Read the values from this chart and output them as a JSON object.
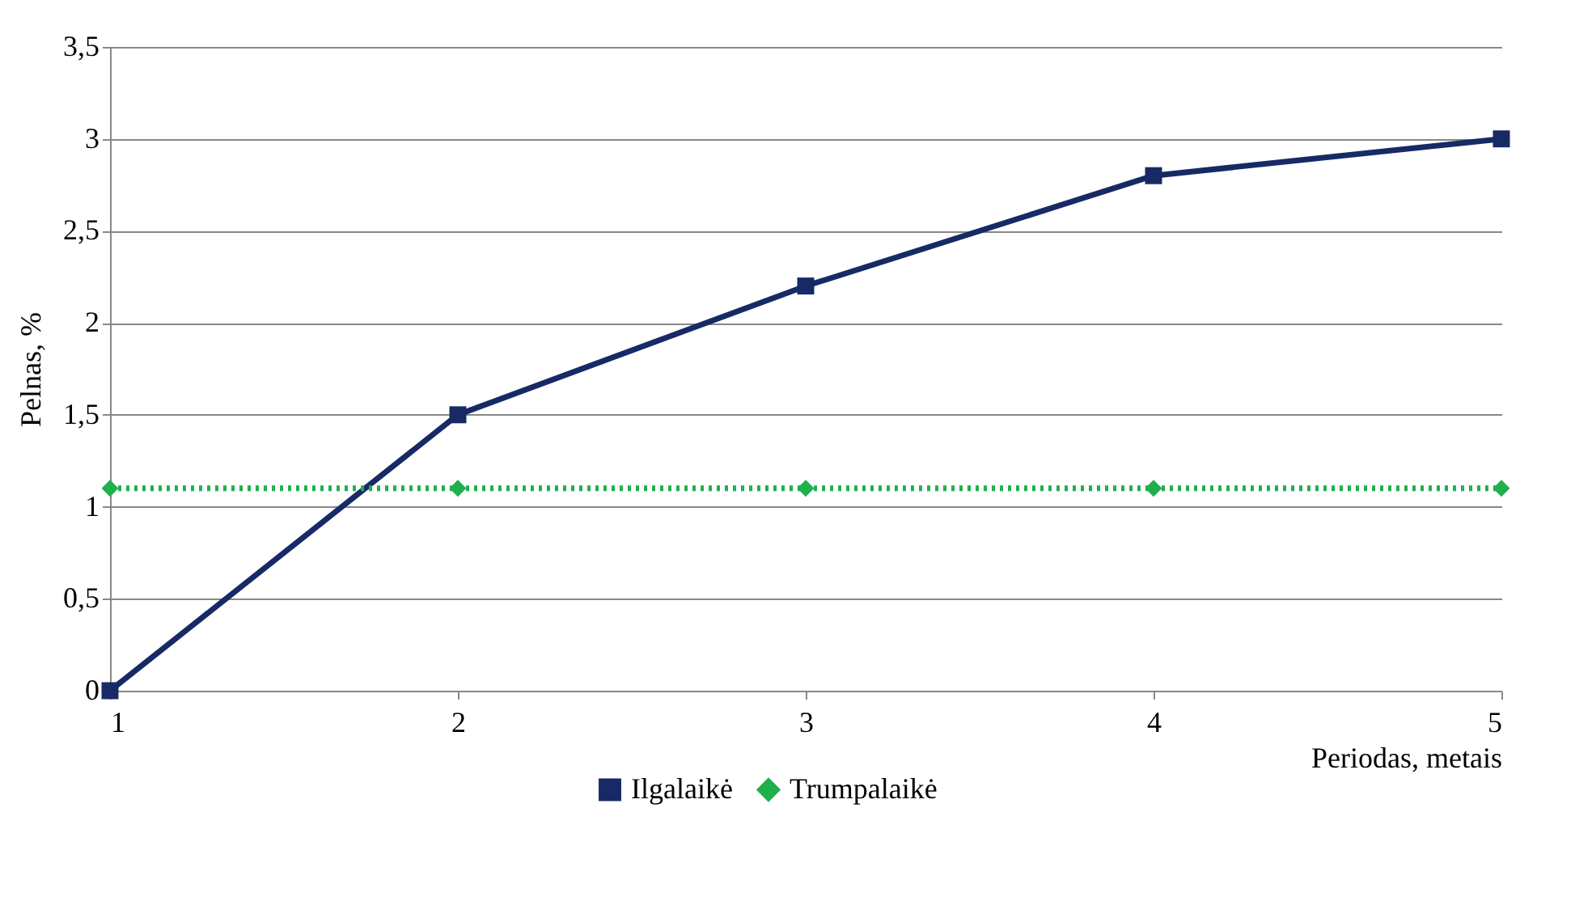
{
  "chart_data": {
    "type": "line",
    "xlabel": "Periodas, metais",
    "ylabel": "Pelnas, %",
    "x": [
      1,
      2,
      3,
      4,
      5
    ],
    "xlim": [
      1,
      5
    ],
    "xticks": [
      1,
      2,
      3,
      4,
      5
    ],
    "ylim": [
      0,
      3.5
    ],
    "yticks": [
      0,
      {
        "value": 0.5,
        "label": "0,5"
      },
      1,
      {
        "value": 1.5,
        "label": "1,5"
      },
      2,
      {
        "value": 2.5,
        "label": "2,5"
      },
      3,
      {
        "value": 3.5,
        "label": "3,5"
      }
    ],
    "grid": "y",
    "legend": "bottom",
    "series": [
      {
        "name": "Ilgalaikė",
        "color": "#172a66",
        "values": [
          0,
          1.5,
          2.2,
          2.8,
          3.0
        ],
        "marker": "square",
        "line_style": "solid"
      },
      {
        "name": "Trumpalaikė",
        "color": "#1fb04c",
        "values": [
          1.1,
          1.1,
          1.1,
          1.1,
          1.1
        ],
        "marker": "diamond",
        "line_style": "dotted"
      }
    ]
  }
}
